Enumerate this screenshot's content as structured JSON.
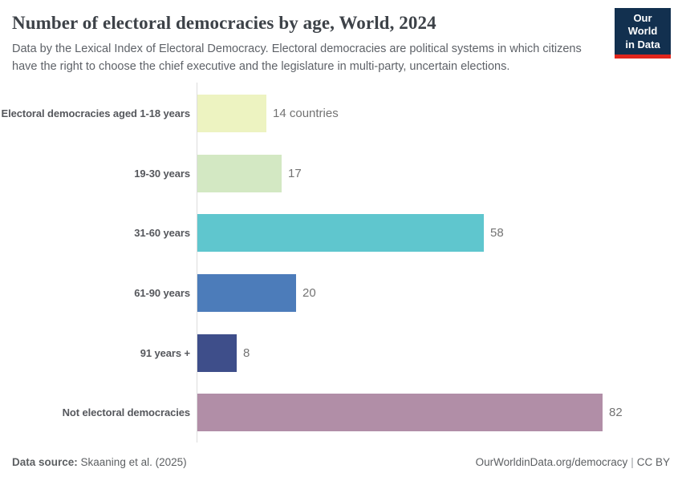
{
  "header": {
    "title": "Number of electoral democracies by age, World, 2024",
    "subtitle": "Data by the Lexical Index of Electoral Democracy. Electoral democracies are political systems in which citizens have the right to choose the chief executive and the legislature in multi-party, uncertain elections.",
    "logo": {
      "line1": "Our World",
      "line2": "in Data"
    }
  },
  "chart_data": {
    "type": "bar",
    "orientation": "horizontal",
    "title": "Number of electoral democracies by age, World, 2024",
    "categories": [
      "Electoral democracies aged 1-18 years",
      "19-30 years",
      "31-60 years",
      "61-90 years",
      "91 years +",
      "Not electoral democracies"
    ],
    "values": [
      14,
      17,
      58,
      20,
      8,
      82
    ],
    "value_labels": [
      "14 countries",
      "17",
      "58",
      "20",
      "8",
      "82"
    ],
    "bar_colors": [
      "#edf3c1",
      "#d3e8c3",
      "#5fc6ce",
      "#4c7cba",
      "#3e4e8a",
      "#b18ea7"
    ],
    "xlim": [
      0,
      82
    ],
    "grid": false,
    "legend": false,
    "xlabel": "",
    "ylabel": ""
  },
  "footer": {
    "source_label": "Data source:",
    "source_value": " Skaaning et al. (2025)",
    "link": "OurWorldinData.org/democracy",
    "divider": "|",
    "license": "CC BY"
  },
  "colors": {
    "logo_bg": "#12304f",
    "logo_accent": "#e0251c",
    "axis_line": "#dcdcdc",
    "title_text": "#3d4248",
    "label_text": "#55575c",
    "value_text": "#737373"
  }
}
